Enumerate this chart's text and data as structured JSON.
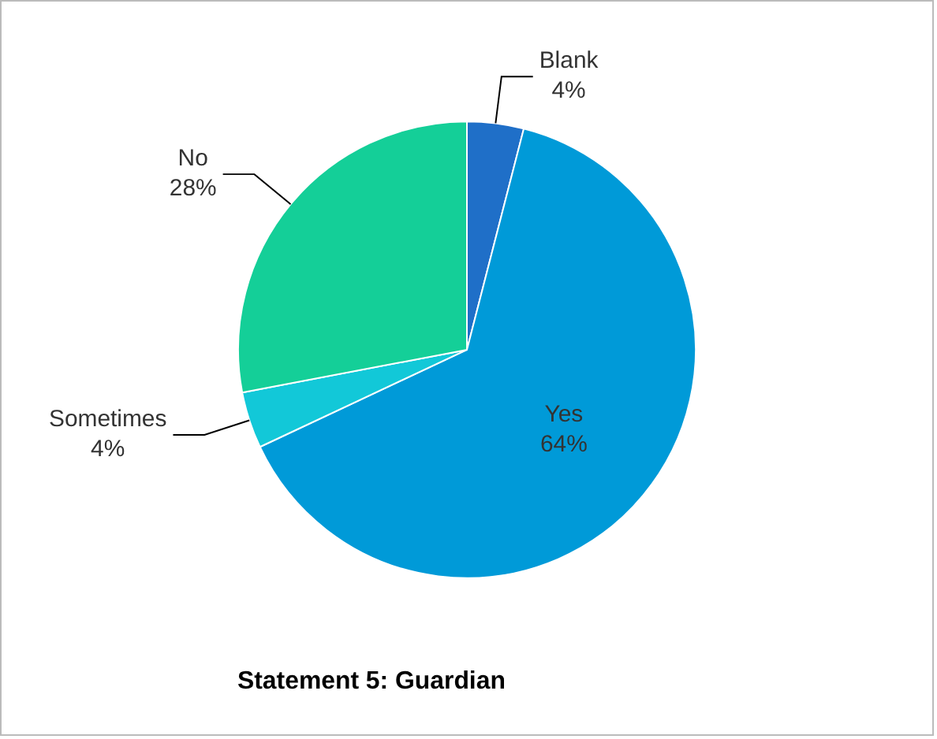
{
  "chart_data": {
    "type": "pie",
    "title": "Statement 5: Guardian",
    "categories": [
      "Blank",
      "Yes",
      "Sometimes",
      "No"
    ],
    "values": [
      4,
      64,
      4,
      28
    ],
    "colors": [
      "#1f6fc8",
      "#009ad8",
      "#12c8d8",
      "#14cf98"
    ],
    "value_labels": [
      "4%",
      "64%",
      "4%",
      "28%"
    ],
    "legend": false
  }
}
